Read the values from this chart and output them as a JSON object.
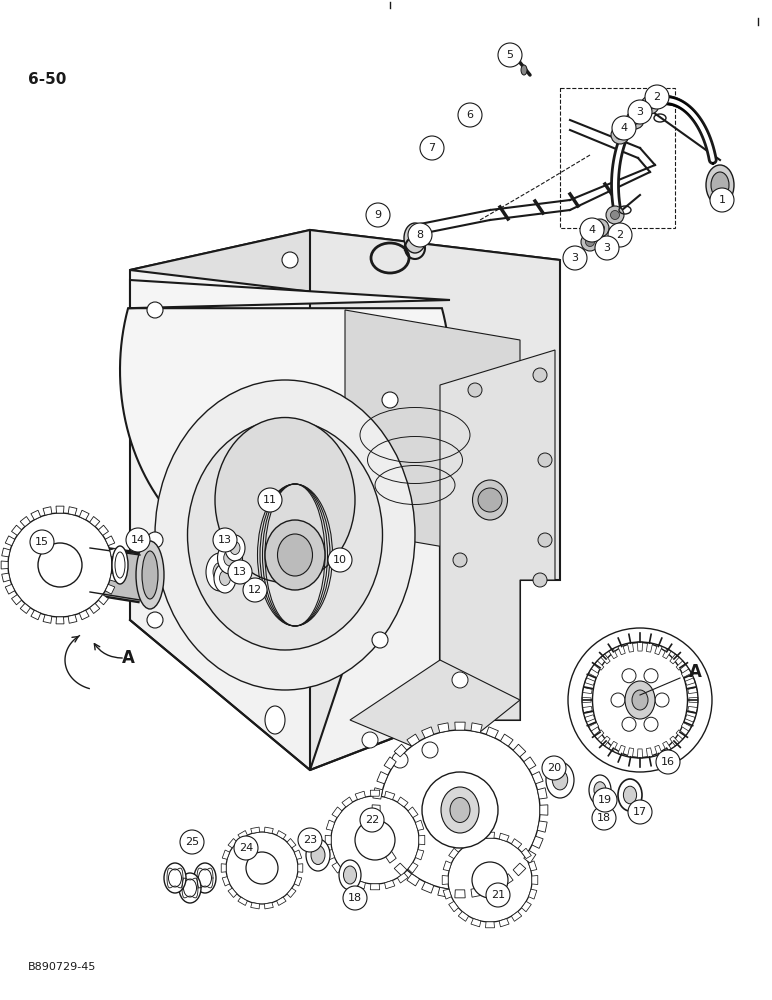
{
  "page_label": "6-50",
  "figure_code": "B890729-45",
  "background_color": "#ffffff",
  "line_color": "#1a1a1a",
  "label_font_size": 8,
  "page_label_font_size": 11,
  "figsize": [
    7.72,
    10.0
  ],
  "dpi": 100
}
